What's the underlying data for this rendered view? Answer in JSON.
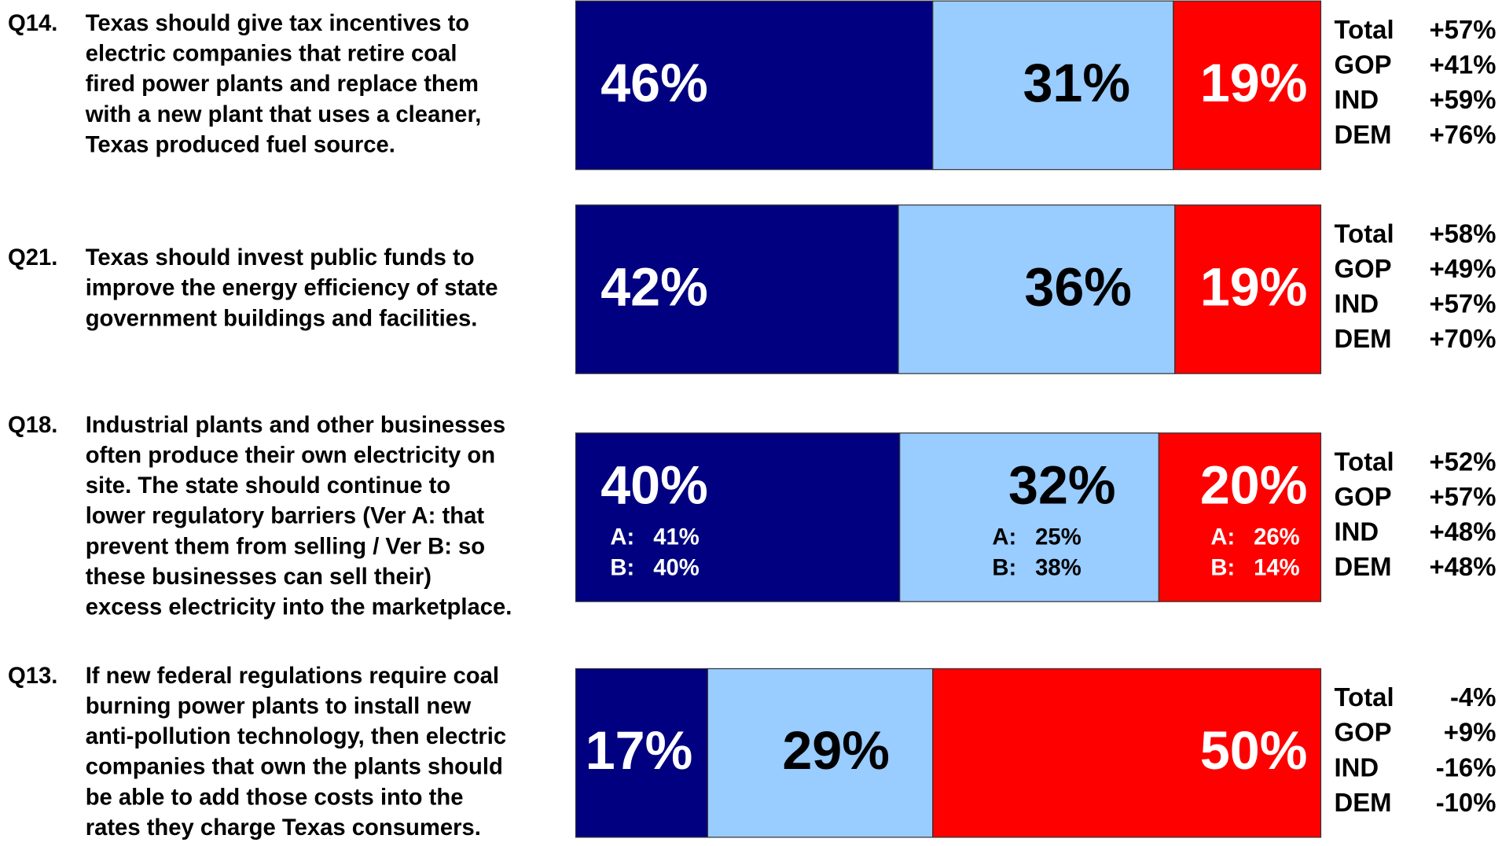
{
  "chart_data": [
    {
      "type": "bar",
      "label": "Q14.",
      "lines": [
        "Texas should give tax incentives to",
        "electric companies that retire coal",
        "fired power plants and replace them",
        "with a new plant that uses a cleaner,",
        "Texas produced fuel source."
      ],
      "values": [
        46,
        31,
        19
      ],
      "value_labels": [
        "46%",
        "31%",
        "19%"
      ],
      "colors": [
        "#000080",
        "#99ccff",
        "#ff0000"
      ],
      "label_colors": [
        "#ffffff",
        "#000000",
        "#ffffff"
      ],
      "net": {
        "groups": [
          "Total",
          "GOP",
          "IND",
          "DEM"
        ],
        "values": [
          57,
          41,
          59,
          76
        ],
        "value_labels": [
          "+57%",
          "+41%",
          "+59%",
          "+76%"
        ]
      }
    },
    {
      "type": "bar",
      "label": "Q21.",
      "lines": [
        "Texas should invest public funds to",
        "improve the energy efficiency of state",
        "government buildings and facilities."
      ],
      "values": [
        42,
        36,
        19
      ],
      "value_labels": [
        "42%",
        "36%",
        "19%"
      ],
      "colors": [
        "#000080",
        "#99ccff",
        "#ff0000"
      ],
      "label_colors": [
        "#ffffff",
        "#000000",
        "#ffffff"
      ],
      "net": {
        "groups": [
          "Total",
          "GOP",
          "IND",
          "DEM"
        ],
        "values": [
          58,
          49,
          57,
          70
        ],
        "value_labels": [
          "+58%",
          "+49%",
          "+57%",
          "+70%"
        ]
      }
    },
    {
      "type": "bar",
      "label": "Q18.",
      "lines": [
        "Industrial plants and other businesses",
        "often produce their own electricity on",
        "site. The state should continue to",
        "lower regulatory barriers (Ver A: that",
        "prevent them from selling / Ver B: so",
        "these businesses can sell their)",
        "excess electricity into the marketplace."
      ],
      "values": [
        40,
        32,
        20
      ],
      "value_labels": [
        "40%",
        "32%",
        "20%"
      ],
      "colors": [
        "#000080",
        "#99ccff",
        "#ff0000"
      ],
      "label_colors": [
        "#ffffff",
        "#000000",
        "#ffffff"
      ],
      "sub_labels": [
        "A:",
        "B:"
      ],
      "sub_values": [
        [
          41,
          40
        ],
        [
          25,
          38
        ],
        [
          26,
          14
        ]
      ],
      "sub_value_labels": [
        [
          "41%",
          "40%"
        ],
        [
          "25%",
          "38%"
        ],
        [
          "26%",
          "14%"
        ]
      ],
      "net": {
        "groups": [
          "Total",
          "GOP",
          "IND",
          "DEM"
        ],
        "values": [
          52,
          57,
          48,
          48
        ],
        "value_labels": [
          "+52%",
          "+57%",
          "+48%",
          "+48%"
        ]
      }
    },
    {
      "type": "bar",
      "label": "Q13.",
      "lines": [
        "If new federal regulations require coal",
        "burning power plants to install new",
        "anti-pollution technology, then electric",
        "companies that own the plants should",
        "be able to add those costs into the",
        "rates they charge Texas consumers."
      ],
      "values": [
        17,
        29,
        50
      ],
      "value_labels": [
        "17%",
        "29%",
        "50%"
      ],
      "colors": [
        "#000080",
        "#99ccff",
        "#ff0000"
      ],
      "label_colors": [
        "#ffffff",
        "#000000",
        "#ffffff"
      ],
      "net": {
        "groups": [
          "Total",
          "GOP",
          "IND",
          "DEM"
        ],
        "values": [
          -4,
          9,
          -16,
          -10
        ],
        "value_labels": [
          "-4%",
          "+9%",
          "-16%",
          "-10%"
        ]
      }
    }
  ]
}
